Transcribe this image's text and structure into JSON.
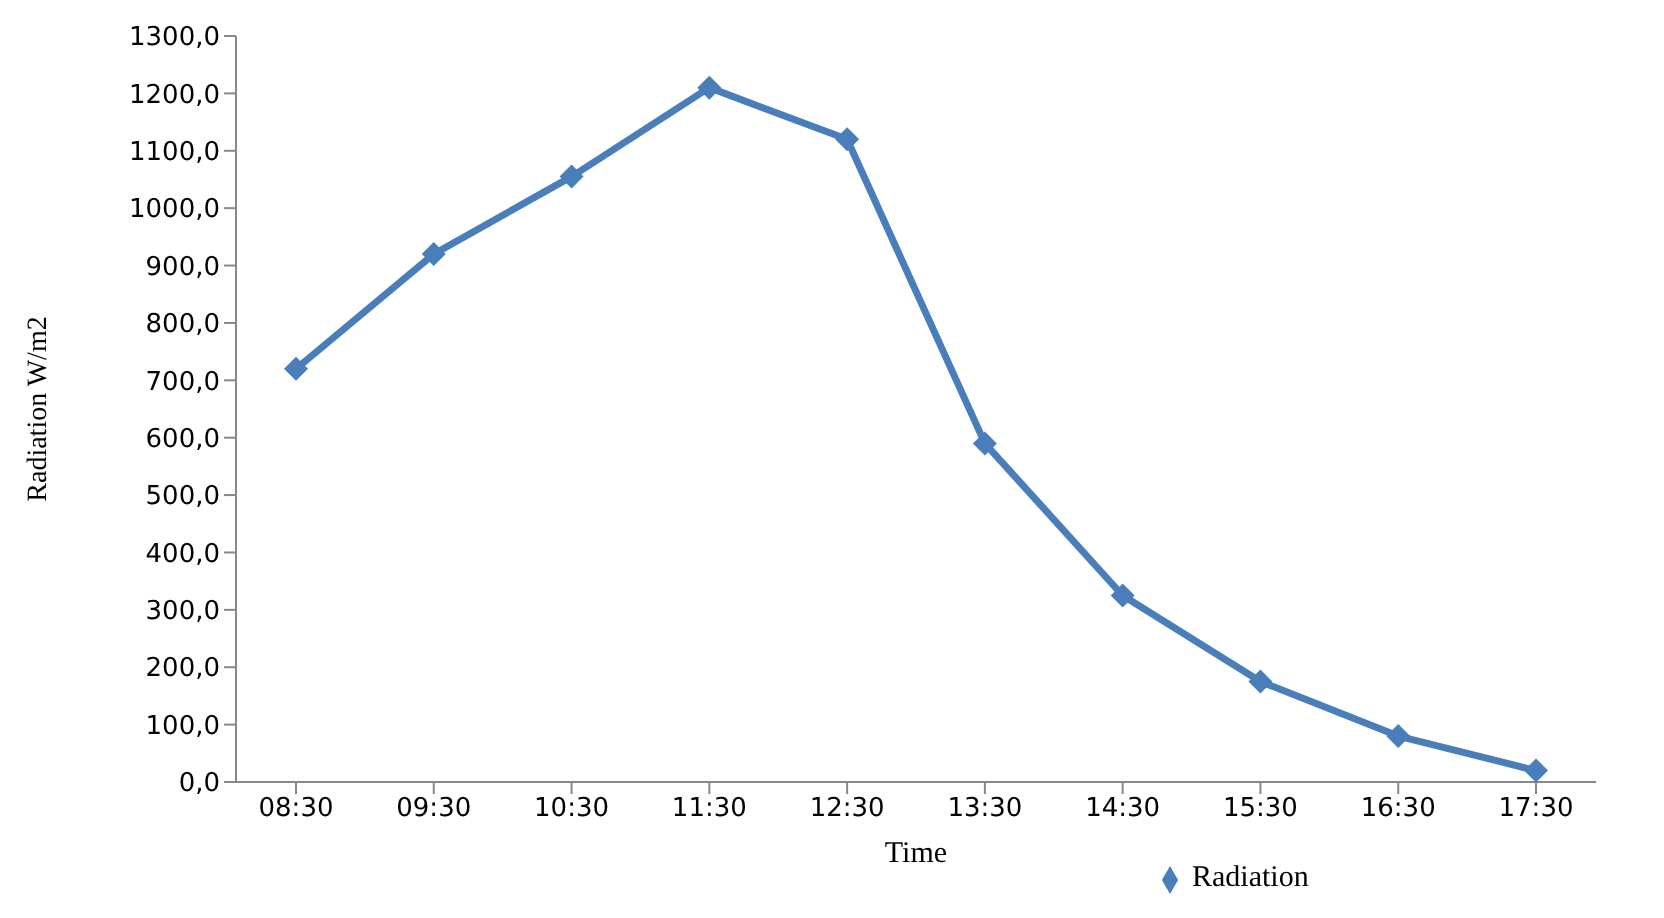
{
  "chart_data": {
    "type": "line",
    "xlabel": "Time",
    "ylabel": "Radiation  W/m2",
    "categories": [
      "08:30",
      "09:30",
      "10:30",
      "11:30",
      "12:30",
      "13:30",
      "14:30",
      "15:30",
      "16:30",
      "17:30"
    ],
    "series": [
      {
        "name": "Radiation",
        "color": "#4a7ebb",
        "values": [
          720,
          920,
          1055,
          1210,
          1120,
          590,
          325,
          175,
          80,
          20
        ]
      }
    ],
    "ylim": [
      0,
      1300
    ],
    "yticks": [
      {
        "value": 0,
        "label": "0,0"
      },
      {
        "value": 100,
        "label": "100,0"
      },
      {
        "value": 200,
        "label": "200,0"
      },
      {
        "value": 300,
        "label": "300,0"
      },
      {
        "value": 400,
        "label": "400,0"
      },
      {
        "value": 500,
        "label": "500,0"
      },
      {
        "value": 600,
        "label": "600,0"
      },
      {
        "value": 700,
        "label": "700,0"
      },
      {
        "value": 800,
        "label": "800,0"
      },
      {
        "value": 900,
        "label": "900,0"
      },
      {
        "value": 1000,
        "label": "1000,0"
      },
      {
        "value": 1100,
        "label": "1100,0"
      },
      {
        "value": 1200,
        "label": "1200,0"
      },
      {
        "value": 1300,
        "label": "1300,0"
      }
    ],
    "grid": false,
    "legend": "bottom",
    "marker": "diamond",
    "line_style": "solid"
  }
}
